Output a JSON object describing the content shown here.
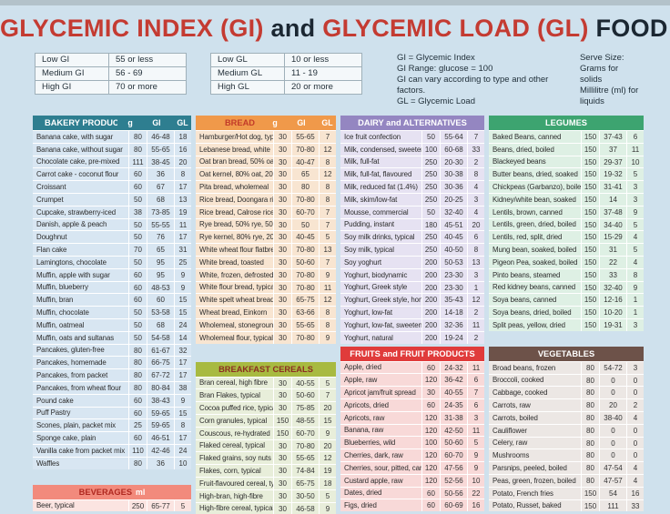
{
  "title": {
    "gi": "GLYCEMIC INDEX (GI)",
    "and": "and",
    "gl": "GLYCEMIC LOAD (GL)",
    "chart": "FOOD CHART"
  },
  "legend_gi": {
    "rows": [
      {
        "label": "Low GI",
        "value": "55 or less"
      },
      {
        "label": "Medium GI",
        "value": "56 - 69"
      },
      {
        "label": "High GI",
        "value": "70 or more"
      }
    ]
  },
  "legend_gl": {
    "rows": [
      {
        "label": "Low GL",
        "value": "10 or less"
      },
      {
        "label": "Medium GL",
        "value": "11 - 19"
      },
      {
        "label": "High GL",
        "value": "20 or more"
      }
    ]
  },
  "notes": {
    "l1": "GI = Glycemic Index",
    "l2": "GI Range: glucose = 100",
    "l3": "GI can vary according to type and other factors.",
    "l4": "GL = Glycemic Load"
  },
  "serve": {
    "l1": "Serve Size:",
    "l2": "Grams for solids",
    "l3": "Millilitre (ml) for liquids"
  },
  "col_headers": [
    "g",
    "GI",
    "GL"
  ],
  "colors": {
    "background": "#cfe1ed",
    "title_red": "#c43b32",
    "title_dark": "#1b2732"
  },
  "tables": {
    "bakery": {
      "title": "BAKERY PRODUCTS",
      "col_headers": true,
      "header_bg": "#2e7e90",
      "title_fg": "#ffffff",
      "label_fg": "#ffffff",
      "row_bg": "#d8e6f2",
      "rows": [
        [
          "Banana cake, with sugar",
          "80",
          "46-48",
          "18"
        ],
        [
          "Banana cake, without sugar",
          "80",
          "55-65",
          "16"
        ],
        [
          "Chocolate cake, pre-mixed",
          "111",
          "38-45",
          "20"
        ],
        [
          "Carrot cake - coconut flour",
          "60",
          "36",
          "8"
        ],
        [
          "Croissant",
          "60",
          "67",
          "17"
        ],
        [
          "Crumpet",
          "50",
          "68",
          "13"
        ],
        [
          "Cupcake, strawberry-iced",
          "38",
          "73-85",
          "19"
        ],
        [
          "Danish, apple & peach",
          "50",
          "55-55",
          "11"
        ],
        [
          "Doughnut",
          "50",
          "76",
          "17"
        ],
        [
          "Flan cake",
          "70",
          "65",
          "31"
        ],
        [
          "Lamingtons, chocolate",
          "50",
          "95",
          "25"
        ],
        [
          "Muffin, apple with sugar",
          "60",
          "95",
          "9"
        ],
        [
          "Muffin, blueberry",
          "60",
          "48-53",
          "9"
        ],
        [
          "Muffin, bran",
          "60",
          "60",
          "15"
        ],
        [
          "Muffin, chocolate",
          "50",
          "53-58",
          "15"
        ],
        [
          "Muffin, oatmeal",
          "50",
          "68",
          "24"
        ],
        [
          "Muffin, oats and sultanas",
          "50",
          "54-58",
          "14"
        ],
        [
          "Pancakes, gluten-free",
          "80",
          "61-67",
          "32"
        ],
        [
          "Pancakes, homemade",
          "80",
          "66-75",
          "17"
        ],
        [
          "Pancakes, from packet",
          "80",
          "67-72",
          "17"
        ],
        [
          "Pancakes, from wheat flour",
          "80",
          "80-84",
          "38"
        ],
        [
          "Pound cake",
          "60",
          "38-43",
          "9"
        ],
        [
          "Puff Pastry",
          "60",
          "59-65",
          "15"
        ],
        [
          "Scones, plain, packet mix",
          "25",
          "59-65",
          "8"
        ],
        [
          "Sponge cake, plain",
          "60",
          "46-51",
          "17"
        ],
        [
          "Vanilla cake from packet mix",
          "110",
          "42-46",
          "24"
        ],
        [
          "Waffles",
          "80",
          "36",
          "10"
        ]
      ]
    },
    "beverages": {
      "title": "BEVERAGES",
      "suffix": "ml",
      "col_headers": false,
      "header_bg": "#f28a7c",
      "title_fg": "#b02820",
      "suffix_fg": "#ffffff",
      "row_bg": "#fbe4e1",
      "rows": [
        [
          "Beer, typical",
          "250",
          "65-77",
          "5"
        ]
      ]
    },
    "bread": {
      "title": "BREAD",
      "col_headers": true,
      "header_bg": "#f0994a",
      "title_fg": "#c23a29",
      "label_fg": "#ffffff",
      "row_bg": "#f8e5d1",
      "rows": [
        [
          "Hamburger/Hot dog, typical",
          "30",
          "55-65",
          "7"
        ],
        [
          "Lebanese bread, white",
          "30",
          "70-80",
          "12"
        ],
        [
          "Oat bran bread, 50% oat bran",
          "30",
          "40-47",
          "8"
        ],
        [
          "Oat kernel, 80% oat, 20% wh.",
          "30",
          "65",
          "12"
        ],
        [
          "Pita bread, wholemeal",
          "30",
          "80",
          "8"
        ],
        [
          "Rice bread, Doongara rice",
          "30",
          "70-80",
          "8"
        ],
        [
          "Rice bread, Calrose rice",
          "30",
          "60-70",
          "7"
        ],
        [
          "Rye bread, 50% rye, 50% wh.",
          "30",
          "50",
          "7"
        ],
        [
          "Rye kernel, 80% rye, 20% wh.",
          "30",
          "40-45",
          "5"
        ],
        [
          "White wheat flour flatbread",
          "30",
          "70-80",
          "13"
        ],
        [
          "White bread, toasted",
          "30",
          "50-60",
          "7"
        ],
        [
          "White, frozen, defrosted",
          "30",
          "70-80",
          "9"
        ],
        [
          "White flour bread, typical",
          "30",
          "70-80",
          "11"
        ],
        [
          "White spelt wheat bread",
          "30",
          "65-75",
          "12"
        ],
        [
          "Wheat bread, Einkorn",
          "30",
          "63-66",
          "8"
        ],
        [
          "Wholemeal, stoneground",
          "30",
          "55-65",
          "8"
        ],
        [
          "Wholemeal flour, typical",
          "30",
          "70-80",
          "9"
        ]
      ]
    },
    "cereals": {
      "title": "BREAKFAST CEREALS",
      "col_headers": false,
      "header_bg": "#a8ba41",
      "title_fg": "#8c2d22",
      "row_bg": "#e8eeda",
      "rows": [
        [
          "Bran cereal, high fibre",
          "30",
          "40-55",
          "5"
        ],
        [
          "Bran Flakes, typical",
          "30",
          "50-60",
          "7"
        ],
        [
          "Cocoa puffed rice, typical",
          "30",
          "75-85",
          "20"
        ],
        [
          "Corn granules, typical",
          "150",
          "48-55",
          "15"
        ],
        [
          "Couscous, re-hydrated",
          "150",
          "60-70",
          "9"
        ],
        [
          "Flaked cereal, typical",
          "30",
          "70-80",
          "20"
        ],
        [
          "Flaked grains, soy nuts",
          "30",
          "55-65",
          "12"
        ],
        [
          "Flakes, corn, typical",
          "30",
          "74-84",
          "19"
        ],
        [
          "Fruit-flavoured cereal, typical",
          "30",
          "65-75",
          "18"
        ],
        [
          "High-bran, high-fibre",
          "30",
          "30-50",
          "5"
        ],
        [
          "High-fibre cereal, typical",
          "30",
          "46-58",
          "9"
        ]
      ]
    },
    "dairy": {
      "title": "DAIRY and ALTERNATIVES",
      "col_headers": false,
      "header_bg": "#9486c1",
      "title_fg": "#ffffff",
      "row_bg": "#e6e2f2",
      "rows": [
        [
          "Ice fruit confection",
          "50",
          "55-64",
          "7"
        ],
        [
          "Milk, condensed, sweetened",
          "100",
          "60-68",
          "33"
        ],
        [
          "Milk, full-fat",
          "250",
          "20-30",
          "2"
        ],
        [
          "Milk, full-fat, flavoured",
          "250",
          "30-38",
          "8"
        ],
        [
          "Milk, reduced fat (1.4%)",
          "250",
          "30-36",
          "4"
        ],
        [
          "Milk, skim/low-fat",
          "250",
          "20-25",
          "3"
        ],
        [
          "Mousse, commercial",
          "50",
          "32-40",
          "4"
        ],
        [
          "Pudding, instant",
          "180",
          "45-51",
          "20"
        ],
        [
          "Soy milk drinks, typical",
          "250",
          "40-45",
          "6"
        ],
        [
          "Soy milk, typical",
          "250",
          "40-50",
          "8"
        ],
        [
          "Soy yoghurt",
          "200",
          "50-53",
          "13"
        ],
        [
          "Yoghurt, biodynamic",
          "200",
          "23-30",
          "3"
        ],
        [
          "Yoghurt, Greek style",
          "200",
          "23-30",
          "1"
        ],
        [
          "Yoghurt, Greek style, honey",
          "200",
          "35-43",
          "12"
        ],
        [
          "Yoghurt, low-fat",
          "200",
          "14-18",
          "2"
        ],
        [
          "Yoghurt, low-fat, sweetened",
          "200",
          "32-36",
          "11"
        ],
        [
          "Yoghurt, natural",
          "200",
          "19-24",
          "2"
        ]
      ]
    },
    "fruits": {
      "title": "FRUITS and FRUIT PRODUCTS",
      "col_headers": false,
      "header_bg": "#e03b3b",
      "title_fg": "#ffffff",
      "row_bg": "#f8d9d8",
      "rows": [
        [
          "Apple, dried",
          "60",
          "24-32",
          "11"
        ],
        [
          "Apple, raw",
          "120",
          "36-42",
          "6"
        ],
        [
          "Apricot jam/fruit spread",
          "30",
          "40-55",
          "7"
        ],
        [
          "Apricots, dried",
          "60",
          "24-35",
          "6"
        ],
        [
          "Apricots, raw",
          "120",
          "31-38",
          "3"
        ],
        [
          "Banana, raw",
          "120",
          "42-50",
          "11"
        ],
        [
          "Blueberries, wild",
          "100",
          "50-60",
          "5"
        ],
        [
          "Cherries, dark, raw",
          "120",
          "60-70",
          "9"
        ],
        [
          "Cherries, sour, pitted, canned",
          "120",
          "47-56",
          "9"
        ],
        [
          "Custard apple, raw",
          "120",
          "52-56",
          "10"
        ],
        [
          "Dates, dried",
          "60",
          "50-56",
          "22"
        ],
        [
          "Figs, dried",
          "60",
          "60-69",
          "16"
        ]
      ]
    },
    "legumes": {
      "title": "LEGUMES",
      "col_headers": false,
      "header_bg": "#3da470",
      "title_fg": "#ffffff",
      "row_bg": "#def0e4",
      "rows": [
        [
          "Baked Beans, canned",
          "150",
          "37-43",
          "6"
        ],
        [
          "Beans, dried, boiled",
          "150",
          "37",
          "11"
        ],
        [
          "Blackeyed beans",
          "150",
          "29-37",
          "10"
        ],
        [
          "Butter beans, dried, soaked",
          "150",
          "19-32",
          "5"
        ],
        [
          "Chickpeas (Garbanzo), boiled",
          "150",
          "31-41",
          "3"
        ],
        [
          "Kidney/white bean, soaked",
          "150",
          "14",
          "3"
        ],
        [
          "Lentils, brown, canned",
          "150",
          "37-48",
          "9"
        ],
        [
          "Lentils, green, dried, boiled",
          "150",
          "34-40",
          "5"
        ],
        [
          "Lentils, red, split, dried",
          "150",
          "15-29",
          "4"
        ],
        [
          "Mung bean, soaked, boiled",
          "150",
          "31",
          "5"
        ],
        [
          "Pigeon Pea, soaked, boiled",
          "150",
          "22",
          "4"
        ],
        [
          "Pinto beans, steamed",
          "150",
          "33",
          "8"
        ],
        [
          "Red kidney beans, canned",
          "150",
          "32-40",
          "9"
        ],
        [
          "Soya beans, canned",
          "150",
          "12-16",
          "1"
        ],
        [
          "Soya beans, dried, boiled",
          "150",
          "10-20",
          "1"
        ],
        [
          "Split peas, yellow, dried",
          "150",
          "19-31",
          "3"
        ]
      ]
    },
    "vegetables": {
      "title": "VEGETABLES",
      "col_headers": false,
      "header_bg": "#6d5249",
      "title_fg": "#ffffff",
      "row_bg": "#ece7e4",
      "rows": [
        [
          "Broad beans, frozen",
          "80",
          "54-72",
          "3"
        ],
        [
          "Broccoli, cooked",
          "80",
          "0",
          "0"
        ],
        [
          "Cabbage, cooked",
          "80",
          "0",
          "0"
        ],
        [
          "Carrots, raw",
          "80",
          "20",
          "2"
        ],
        [
          "Carrots, boiled",
          "80",
          "38-40",
          "4"
        ],
        [
          "Cauliflower",
          "80",
          "0",
          "0"
        ],
        [
          "Celery, raw",
          "80",
          "0",
          "0"
        ],
        [
          "Mushrooms",
          "80",
          "0",
          "0"
        ],
        [
          "Parsnips, peeled, boiled",
          "80",
          "47-54",
          "4"
        ],
        [
          "Peas, green, frozen, boiled",
          "80",
          "47-57",
          "4"
        ],
        [
          "Potato, French fries",
          "150",
          "54",
          "16"
        ],
        [
          "Potato, Russet, baked",
          "150",
          "111",
          "33"
        ]
      ]
    }
  }
}
